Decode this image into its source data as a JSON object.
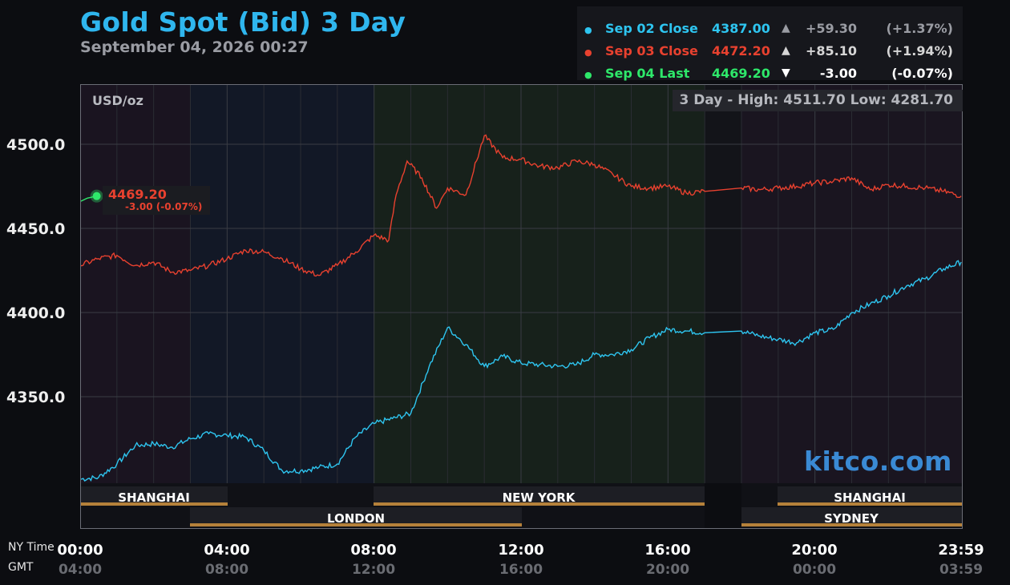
{
  "header": {
    "title": "Gold Spot (Bid) 3 Day",
    "datetime": "September 04, 2026 00:27"
  },
  "legend": [
    {
      "dot": "●",
      "name": "Sep 02 Close",
      "price": "4387.00",
      "arrow": "▲",
      "change": "+59.30",
      "percent": "(+1.37%)",
      "color": "#2ec5f0",
      "change_color": "#9a9ca3"
    },
    {
      "dot": "●",
      "name": "Sep 03 Close",
      "price": "4472.20",
      "arrow": "▲",
      "change": "+85.10",
      "percent": "(+1.94%)",
      "color": "#e8412f",
      "change_color": "#d6d6d6"
    },
    {
      "dot": "●",
      "name": "Sep 04 Last",
      "price": "4469.20",
      "arrow": "▼",
      "change": "-3.00",
      "percent": "(-0.07%)",
      "color": "#2ee86a",
      "change_color": "#ffffff"
    }
  ],
  "plot": {
    "unit": "USD/oz",
    "range_label": "3 Day - High: 4511.70  Low: 4281.70",
    "last_price": "4469.20",
    "last_change": "-3.00 (-0.07%)",
    "watermark": "kitco.com"
  },
  "axes": {
    "tz_ny": "NY Time",
    "tz_gmt": "GMT",
    "x_ny": [
      "00:00",
      "04:00",
      "08:00",
      "12:00",
      "16:00",
      "20:00",
      "23:59"
    ],
    "x_gmt": [
      "04:00",
      "08:00",
      "12:00",
      "16:00",
      "20:00",
      "00:00",
      "03:59"
    ],
    "y": [
      "4500.0",
      "4450.0",
      "4400.0",
      "4350.0"
    ]
  },
  "sessions": {
    "shanghai": "SHANGHAI",
    "london": "LONDON",
    "new_york": "NEW YORK",
    "sydney": "SYDNEY"
  },
  "colors": {
    "sep02": "#2ec5f0",
    "sep03": "#e8412f",
    "sep04": "#2ee86a",
    "session_bar": "#b5813a",
    "title": "#2fb6ee"
  },
  "chart_data": {
    "type": "line",
    "title": "Gold Spot (Bid) 3 Day",
    "ylabel": "USD/oz",
    "x_unit": "NY time (hours)",
    "xlim": [
      0,
      24
    ],
    "ylim": [
      4281.7,
      4535
    ],
    "grid": true,
    "legend_placement": "top-right",
    "high": 4511.7,
    "low": 4281.7,
    "series": [
      {
        "name": "Sep 02 Close",
        "color": "#2ec5f0",
        "x": [
          0,
          0.5,
          1.0,
          1.5,
          2.0,
          2.5,
          3.0,
          3.5,
          4.0,
          4.5,
          5.0,
          5.5,
          6.0,
          6.5,
          7.0,
          7.5,
          8.0,
          8.5,
          9.0,
          9.5,
          10.0,
          10.5,
          11.0,
          11.5,
          12.0,
          12.5,
          13.0,
          13.5,
          14.0,
          14.5,
          15.0,
          15.5,
          16.0,
          16.5,
          17.0,
          18.0,
          18.5,
          19.0,
          19.5,
          20.0,
          20.5,
          21.0,
          21.5,
          22.0,
          22.5,
          23.0,
          23.5,
          23.98
        ],
        "y": [
          4301,
          4302,
          4310,
          4321,
          4322,
          4320,
          4325,
          4328,
          4327,
          4326,
          4318,
          4306,
          4306,
          4308,
          4310,
          4326,
          4334,
          4337,
          4340,
          4368,
          4391,
          4381,
          4368,
          4374,
          4370,
          4369,
          4368,
          4369,
          4375,
          4375,
          4378,
          4385,
          4390,
          4389,
          4388,
          4389,
          4386,
          4384,
          4382,
          4388,
          4390,
          4400,
          4405,
          4410,
          4416,
          4420,
          4426,
          4430
        ]
      },
      {
        "name": "Sep 03 Close",
        "color": "#e8412f",
        "x": [
          0,
          0.5,
          1.0,
          1.5,
          2.0,
          2.5,
          3.0,
          3.5,
          4.0,
          4.5,
          5.0,
          5.5,
          6.0,
          6.5,
          7.0,
          7.5,
          8.0,
          8.4,
          8.6,
          8.9,
          9.3,
          9.7,
          10.0,
          10.5,
          11.0,
          11.5,
          12.0,
          12.5,
          13.0,
          13.5,
          14.0,
          14.5,
          15.0,
          15.5,
          16.0,
          16.5,
          17.0,
          18.0,
          18.5,
          19.0,
          19.5,
          20.0,
          20.5,
          21.0,
          21.5,
          22.0,
          22.5,
          23.0,
          23.5,
          23.98
        ],
        "y": [
          4428,
          4432,
          4434,
          4428,
          4430,
          4424,
          4425,
          4428,
          4432,
          4437,
          4436,
          4432,
          4426,
          4422,
          4428,
          4436,
          4446,
          4443,
          4470,
          4490,
          4480,
          4462,
          4474,
          4470,
          4505,
          4492,
          4491,
          4487,
          4486,
          4490,
          4488,
          4482,
          4475,
          4474,
          4475,
          4471,
          4472,
          4474,
          4473,
          4474,
          4475,
          4477,
          4478,
          4480,
          4473,
          4476,
          4475,
          4474,
          4472,
          4469.2
        ]
      },
      {
        "name": "Sep 04 Last",
        "color": "#2ee86a",
        "x": [
          0,
          0.2,
          0.45
        ],
        "y": [
          4466,
          4468,
          4469.2
        ]
      }
    ]
  }
}
